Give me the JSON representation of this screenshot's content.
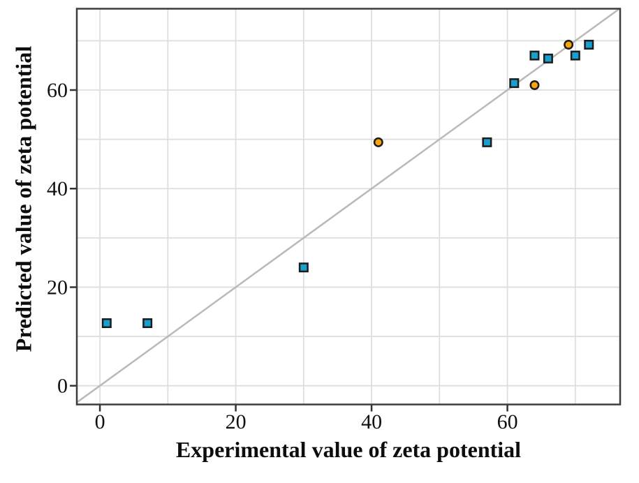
{
  "chart_data": {
    "type": "scatter",
    "title": "",
    "xlabel": "Experimental value of zeta potential",
    "ylabel": "Predicted value of zeta potential",
    "xlim": [
      -3.4,
      76.6
    ],
    "ylim": [
      -3.8,
      76.5
    ],
    "x_ticks": [
      "0",
      "20",
      "40",
      "60"
    ],
    "x_tick_values": [
      0,
      20,
      40,
      60
    ],
    "y_ticks": [
      "0",
      "20",
      "40",
      "60"
    ],
    "y_tick_values": [
      0,
      20,
      40,
      60
    ],
    "grid": true,
    "grid_values": [
      0,
      10,
      20,
      30,
      40,
      50,
      60,
      70
    ],
    "identity_line": true,
    "legend": "none",
    "series": [
      {
        "name": "blue-squares",
        "marker": "square",
        "fill": "#189FCD",
        "points": [
          [
            1,
            12.7
          ],
          [
            7,
            12.7
          ],
          [
            30,
            24.0
          ],
          [
            57,
            49.4
          ],
          [
            61,
            61.4
          ],
          [
            64,
            67.0
          ],
          [
            66,
            66.4
          ],
          [
            70,
            67.0
          ],
          [
            72,
            69.2
          ]
        ]
      },
      {
        "name": "orange-circles",
        "marker": "circle",
        "fill": "#FAA30B",
        "points": [
          [
            41,
            49.4
          ],
          [
            64,
            61.0
          ],
          [
            69,
            69.2
          ]
        ]
      }
    ]
  },
  "colors": {
    "marker_stroke": "#1c1c1c",
    "grid_line": "#dedede",
    "plot_border": "#3d3d3d",
    "identity_line": "#b9b9b9",
    "tick_mark": "#333333",
    "tick_text": "#111111"
  }
}
